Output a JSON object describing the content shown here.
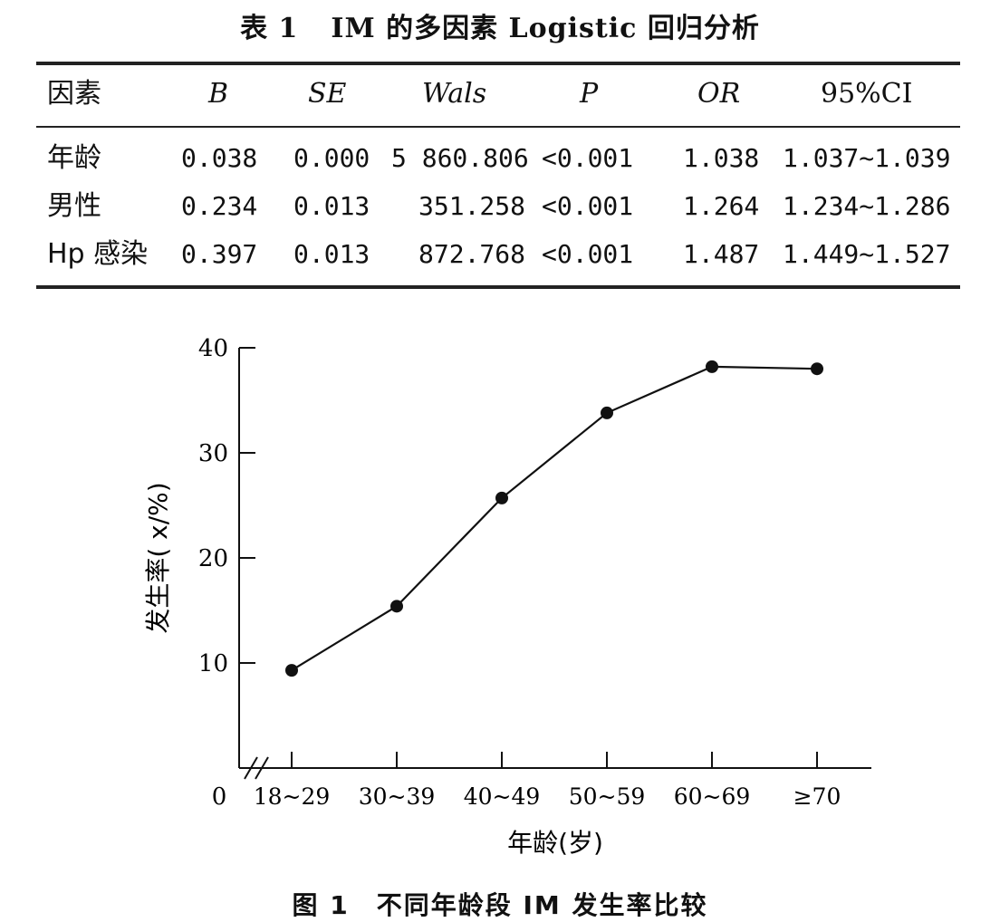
{
  "table": {
    "label": "表 1",
    "title": "IM 的多因素 Logistic 回归分析",
    "headers": [
      "因素",
      "B",
      "SE",
      "Wals",
      "P",
      "OR",
      "95%CI"
    ],
    "rows": [
      [
        "年龄",
        "0.038",
        "0.000",
        "5 860.806",
        "<0.001",
        "1.038",
        "1.037~1.039"
      ],
      [
        "男性",
        "0.234",
        "0.013",
        "351.258",
        "<0.001",
        "1.264",
        "1.234~1.286"
      ],
      [
        "Hp 感染",
        "0.397",
        "0.013",
        "872.768",
        "<0.001",
        "1.487",
        "1.449~1.527"
      ]
    ]
  },
  "figure": {
    "label": "图 1",
    "caption": "不同年龄段 IM 发生率比较"
  },
  "chart_data": {
    "type": "line",
    "categories": [
      "18~29",
      "30~39",
      "40~49",
      "50~59",
      "60~69",
      "≥70"
    ],
    "values": [
      9.3,
      15.4,
      25.7,
      33.8,
      38.2,
      38.0
    ],
    "xlabel": "年龄(岁)",
    "ylabel": "发生率( x/%)",
    "yticks": [
      "10",
      "20",
      "30",
      "40"
    ],
    "origin_label": "0",
    "ylim": [
      0,
      40
    ],
    "axis_break": true,
    "grid": false
  }
}
